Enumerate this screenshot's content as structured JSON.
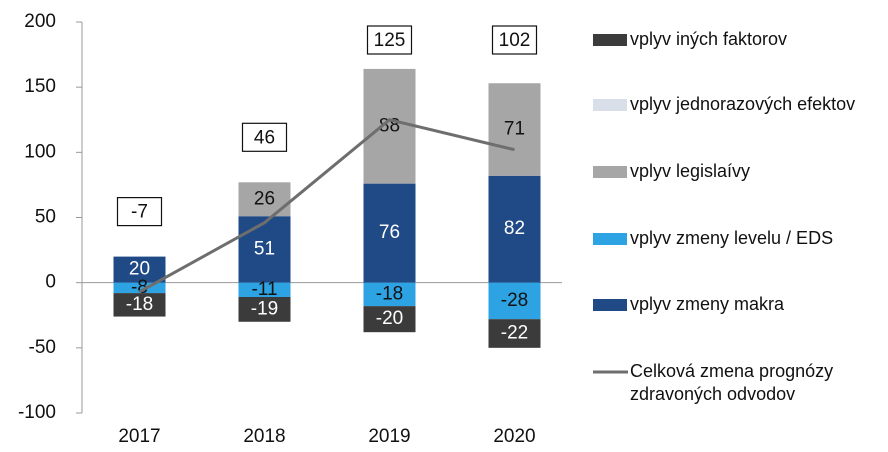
{
  "chart_data": {
    "type": "bar",
    "stacked": true,
    "categories": [
      "2017",
      "2018",
      "2019",
      "2020"
    ],
    "series": [
      {
        "name": "vplyv iných faktorov",
        "color": "#3b3b3b",
        "values": [
          -18,
          -19,
          -20,
          -22
        ]
      },
      {
        "name": "vplyv jednorazových efektov",
        "color": "#d9dfe8",
        "values": [
          0,
          0,
          0,
          0
        ]
      },
      {
        "name": "vplyv legislaívy",
        "color": "#a6a6a6",
        "values": [
          0,
          26,
          88,
          71
        ]
      },
      {
        "name": "vplyv zmeny levelu / EDS",
        "color": "#2ea3e3",
        "values": [
          -8,
          -11,
          -18,
          -28
        ]
      },
      {
        "name": "vplyv zmeny makra",
        "color": "#1f4a86",
        "values": [
          20,
          51,
          76,
          82
        ]
      }
    ],
    "line": {
      "name": "Celková zmena prognózy zdravoných odvodov",
      "color": "#6e6e6e",
      "values": [
        -7,
        46,
        125,
        102
      ]
    },
    "ylim": [
      -100,
      200
    ],
    "yticks": [
      -100,
      -50,
      0,
      50,
      100,
      150,
      200
    ]
  }
}
